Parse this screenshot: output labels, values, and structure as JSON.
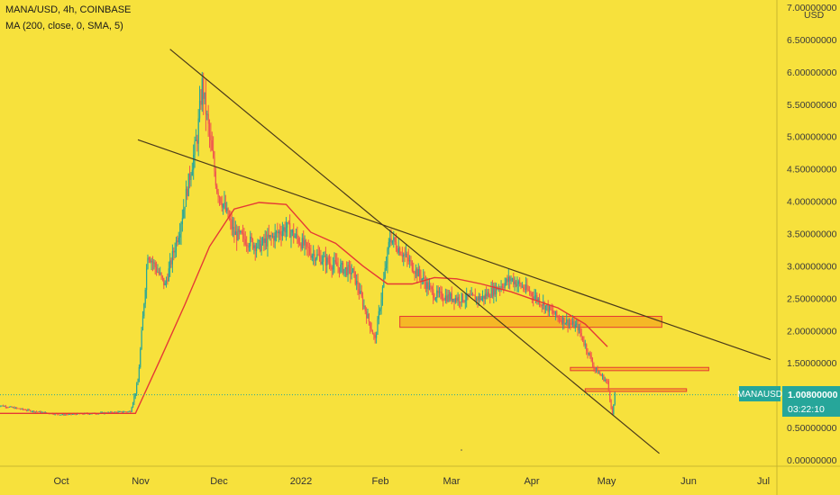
{
  "header": {
    "symbol_line": "MANA/USD, 4h, COINBASE",
    "indicator_line": "MA (200, close, 0, SMA, 5)"
  },
  "axis": {
    "currency_label": "USD",
    "y_ticks": [
      "7.00000000",
      "6.50000000",
      "6.00000000",
      "5.50000000",
      "5.00000000",
      "4.50000000",
      "4.00000000",
      "3.50000000",
      "3.00000000",
      "2.50000000",
      "2.00000000",
      "1.50000000",
      "1.00000000",
      "0.50000000",
      "0.00000000"
    ],
    "x_ticks": [
      "Oct",
      "Nov",
      "Dec",
      "2022",
      "Feb",
      "Mar",
      "Apr",
      "May",
      "Jun",
      "Jul"
    ]
  },
  "price_badge": {
    "ticker": "MANAUSD",
    "price": "1.00800000",
    "countdown": "03:22:10"
  },
  "colors": {
    "background": "#f7e13c",
    "candle_up": "#26a69a",
    "candle_down": "#ef5350",
    "moving_average": "#e53935",
    "trendline": "#4a3a1a",
    "zone_fill": "#f5b022",
    "zone_border": "#e53935",
    "badge": "#26a69a"
  },
  "chart_data": {
    "type": "line",
    "series": [
      {
        "name": "MA (200, close, 0, SMA, 5)",
        "x": [
          "2021-09-05",
          "2021-10-01",
          "2021-10-15",
          "2021-10-31",
          "2021-11-10",
          "2021-11-20",
          "2021-11-30",
          "2021-12-10",
          "2021-12-20",
          "2021-12-31",
          "2022-01-10",
          "2022-01-20",
          "2022-01-31",
          "2022-02-10",
          "2022-02-20",
          "2022-03-01",
          "2022-03-10",
          "2022-03-20",
          "2022-04-01",
          "2022-04-10",
          "2022-04-20",
          "2022-05-01",
          "2022-05-10"
        ],
        "values": [
          0.72,
          0.72,
          0.72,
          0.72,
          1.55,
          2.4,
          3.3,
          3.88,
          3.98,
          3.95,
          3.52,
          3.35,
          3.0,
          2.72,
          2.72,
          2.82,
          2.8,
          2.72,
          2.6,
          2.48,
          2.35,
          2.1,
          1.75
        ]
      },
      {
        "name": "MANA/USD",
        "x": [
          "2021-09-05",
          "2021-09-20",
          "2021-10-01",
          "2021-10-15",
          "2021-10-29",
          "2021-11-01",
          "2021-11-05",
          "2021-11-12",
          "2021-11-18",
          "2021-11-25",
          "2021-11-27",
          "2021-12-03",
          "2021-12-10",
          "2021-12-20",
          "2021-12-31",
          "2022-01-10",
          "2022-01-20",
          "2022-01-27",
          "2022-02-05",
          "2022-02-11",
          "2022-02-20",
          "2022-03-01",
          "2022-03-10",
          "2022-03-20",
          "2022-04-01",
          "2022-04-10",
          "2022-04-20",
          "2022-04-28",
          "2022-05-05",
          "2022-05-10",
          "2022-05-12",
          "2022-05-13"
        ],
        "values": [
          0.85,
          0.75,
          0.7,
          0.72,
          0.75,
          1.2,
          3.2,
          2.7,
          3.6,
          5.0,
          5.8,
          4.2,
          3.5,
          3.3,
          3.6,
          3.2,
          3.0,
          2.9,
          1.85,
          3.45,
          3.0,
          2.55,
          2.5,
          2.5,
          2.8,
          2.55,
          2.2,
          2.05,
          1.4,
          1.2,
          0.7,
          1.01
        ]
      }
    ],
    "trendlines": [
      {
        "from": [
          "2021-11-01",
          4.95
        ],
        "to": [
          "2022-07-15",
          1.55
        ]
      },
      {
        "from": [
          "2021-11-14",
          6.35
        ],
        "to": [
          "2022-05-31",
          0.1
        ]
      }
    ],
    "zones": [
      {
        "from": "2022-02-15",
        "to": "2022-06-01",
        "low": 2.05,
        "high": 2.22
      },
      {
        "from": "2022-04-25",
        "to": "2022-06-20",
        "low": 1.38,
        "high": 1.43
      },
      {
        "from": "2022-05-01",
        "to": "2022-06-11",
        "low": 1.06,
        "high": 1.1
      }
    ],
    "current_price": 1.008,
    "xlabel": "",
    "ylabel": "",
    "ylim": [
      0,
      7
    ],
    "grid": false,
    "legend": "none"
  }
}
